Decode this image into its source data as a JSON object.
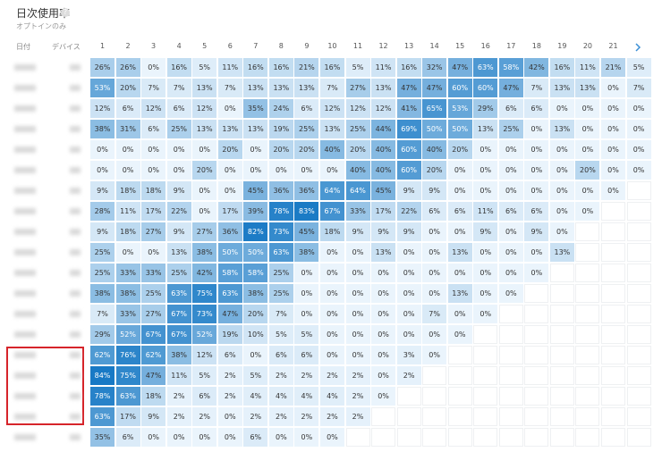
{
  "header": {
    "title": "日次使用率",
    "subtitle": "オプトインのみ"
  },
  "table": {
    "date_header": "日付",
    "device_header": "デバイス",
    "columns": [
      "1",
      "2",
      "3",
      "4",
      "5",
      "6",
      "7",
      "8",
      "9",
      "10",
      "11",
      "12",
      "13",
      "14",
      "15",
      "16",
      "17",
      "18",
      "19",
      "20",
      "21"
    ],
    "rows": [
      [
        "26%",
        "26%",
        "0%",
        "16%",
        "5%",
        "11%",
        "16%",
        "16%",
        "21%",
        "16%",
        "5%",
        "11%",
        "16%",
        "32%",
        "47%",
        "63%",
        "58%",
        "42%",
        "16%",
        "11%",
        "21%",
        "5%"
      ],
      [
        "53%",
        "20%",
        "7%",
        "7%",
        "13%",
        "7%",
        "13%",
        "13%",
        "13%",
        "7%",
        "27%",
        "13%",
        "47%",
        "47%",
        "60%",
        "60%",
        "47%",
        "7%",
        "13%",
        "13%",
        "0%",
        "7%"
      ],
      [
        "12%",
        "6%",
        "12%",
        "6%",
        "12%",
        "0%",
        "35%",
        "24%",
        "6%",
        "12%",
        "12%",
        "12%",
        "41%",
        "65%",
        "53%",
        "29%",
        "6%",
        "6%",
        "0%",
        "0%",
        "0%",
        "0%"
      ],
      [
        "38%",
        "31%",
        "6%",
        "25%",
        "13%",
        "13%",
        "13%",
        "19%",
        "25%",
        "13%",
        "25%",
        "44%",
        "69%",
        "50%",
        "50%",
        "13%",
        "25%",
        "0%",
        "13%",
        "0%",
        "0%",
        "0%"
      ],
      [
        "0%",
        "0%",
        "0%",
        "0%",
        "0%",
        "20%",
        "0%",
        "20%",
        "20%",
        "40%",
        "20%",
        "40%",
        "60%",
        "40%",
        "20%",
        "0%",
        "0%",
        "0%",
        "0%",
        "0%",
        "0%",
        "0%"
      ],
      [
        "0%",
        "0%",
        "0%",
        "0%",
        "20%",
        "0%",
        "0%",
        "0%",
        "0%",
        "0%",
        "40%",
        "40%",
        "60%",
        "20%",
        "0%",
        "0%",
        "0%",
        "0%",
        "0%",
        "20%",
        "0%",
        "0%"
      ],
      [
        "9%",
        "18%",
        "18%",
        "9%",
        "0%",
        "0%",
        "45%",
        "36%",
        "36%",
        "64%",
        "64%",
        "45%",
        "9%",
        "9%",
        "0%",
        "0%",
        "0%",
        "0%",
        "0%",
        "0%",
        "0%"
      ],
      [
        "28%",
        "11%",
        "17%",
        "22%",
        "0%",
        "17%",
        "39%",
        "78%",
        "83%",
        "67%",
        "33%",
        "17%",
        "22%",
        "6%",
        "6%",
        "11%",
        "6%",
        "6%",
        "0%",
        "0%"
      ],
      [
        "9%",
        "18%",
        "27%",
        "9%",
        "27%",
        "36%",
        "82%",
        "73%",
        "45%",
        "18%",
        "9%",
        "9%",
        "9%",
        "0%",
        "0%",
        "9%",
        "0%",
        "9%",
        "0%"
      ],
      [
        "25%",
        "0%",
        "0%",
        "13%",
        "38%",
        "50%",
        "50%",
        "63%",
        "38%",
        "0%",
        "0%",
        "13%",
        "0%",
        "0%",
        "13%",
        "0%",
        "0%",
        "0%",
        "13%"
      ],
      [
        "25%",
        "33%",
        "33%",
        "25%",
        "42%",
        "58%",
        "58%",
        "25%",
        "0%",
        "0%",
        "0%",
        "0%",
        "0%",
        "0%",
        "0%",
        "0%",
        "0%",
        "0%"
      ],
      [
        "38%",
        "38%",
        "25%",
        "63%",
        "75%",
        "63%",
        "38%",
        "25%",
        "0%",
        "0%",
        "0%",
        "0%",
        "0%",
        "0%",
        "13%",
        "0%",
        "0%"
      ],
      [
        "7%",
        "33%",
        "27%",
        "67%",
        "73%",
        "47%",
        "20%",
        "7%",
        "0%",
        "0%",
        "0%",
        "0%",
        "0%",
        "7%",
        "0%",
        "0%"
      ],
      [
        "29%",
        "52%",
        "67%",
        "67%",
        "52%",
        "19%",
        "10%",
        "5%",
        "5%",
        "0%",
        "0%",
        "0%",
        "0%",
        "0%",
        "0%"
      ],
      [
        "62%",
        "76%",
        "62%",
        "38%",
        "12%",
        "6%",
        "0%",
        "6%",
        "6%",
        "0%",
        "0%",
        "0%",
        "3%",
        "0%"
      ],
      [
        "84%",
        "75%",
        "47%",
        "11%",
        "5%",
        "2%",
        "5%",
        "2%",
        "2%",
        "2%",
        "2%",
        "0%",
        "2%"
      ],
      [
        "78%",
        "63%",
        "18%",
        "2%",
        "6%",
        "2%",
        "4%",
        "4%",
        "4%",
        "4%",
        "2%",
        "0%"
      ],
      [
        "63%",
        "17%",
        "9%",
        "2%",
        "2%",
        "0%",
        "2%",
        "2%",
        "2%",
        "2%",
        "2%"
      ],
      [
        "35%",
        "6%",
        "0%",
        "0%",
        "0%",
        "0%",
        "6%",
        "0%",
        "0%",
        "0%"
      ]
    ]
  }
}
